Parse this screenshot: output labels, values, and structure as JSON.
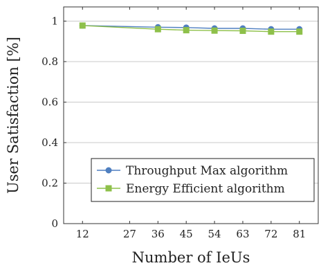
{
  "chart_data": {
    "type": "line",
    "xlabel": "Number of IeUs",
    "ylabel": "User Satisfaction [%]",
    "x_ticks": [
      12,
      27,
      36,
      45,
      54,
      63,
      72,
      81
    ],
    "y_ticks": [
      0,
      0.2,
      0.4,
      0.6,
      0.8,
      1
    ],
    "y_tick_labels": [
      "0",
      "0.2",
      "0.4",
      "0.6",
      "0.8",
      "1"
    ],
    "xlim": [
      6,
      87
    ],
    "ylim": [
      0,
      1.07
    ],
    "grid": "horizontal",
    "legend_position": "bottom-right",
    "series": [
      {
        "name": "Throughput Max algorithm",
        "color": "#4f7fc0",
        "marker": "circle",
        "x": [
          12,
          36,
          45,
          54,
          63,
          72,
          81
        ],
        "y": [
          0.978,
          0.97,
          0.968,
          0.964,
          0.964,
          0.96,
          0.96
        ]
      },
      {
        "name": "Energy Efficient algorithm",
        "color": "#8ec04a",
        "marker": "square",
        "x": [
          12,
          36,
          45,
          54,
          63,
          72,
          81
        ],
        "y": [
          0.978,
          0.96,
          0.955,
          0.953,
          0.952,
          0.948,
          0.948
        ]
      }
    ]
  }
}
